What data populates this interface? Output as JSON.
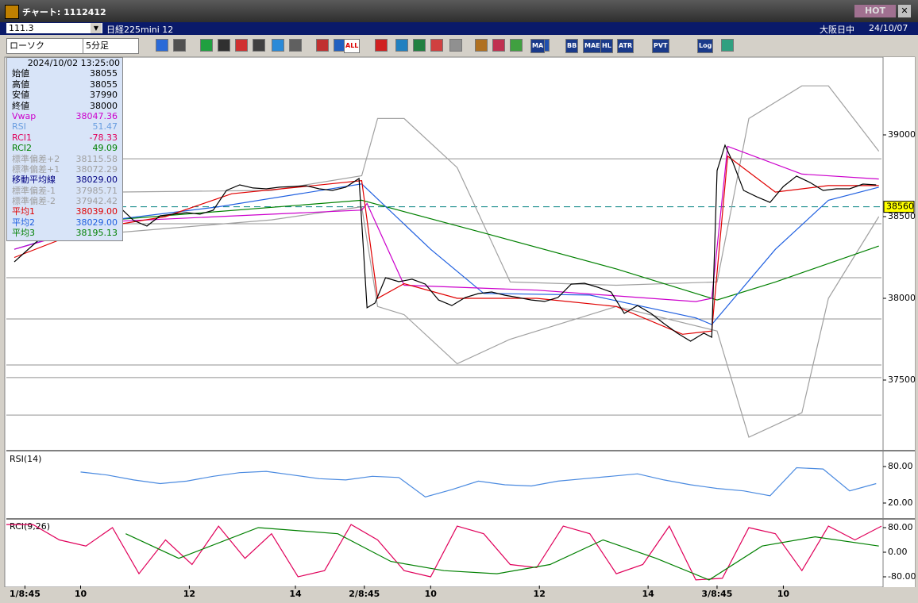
{
  "window": {
    "title": "チャート: 1112412",
    "hot": "HOT",
    "code": "111.3",
    "symbol": "日経225mini 12",
    "session": "大阪日中",
    "date": "24/10/07"
  },
  "toolbar": {
    "chart_kind": "ローソク",
    "interval": "5分足",
    "icons": [
      "ALL",
      "MA",
      "BB",
      "MAE",
      "HL",
      "ATR",
      "PVT",
      "Log"
    ]
  },
  "info_panel": {
    "datetime": "2024/10/02 13:25:00",
    "rows": [
      {
        "label": "始値",
        "value": "38055",
        "color": "#000000"
      },
      {
        "label": "高値",
        "value": "38055",
        "color": "#000000"
      },
      {
        "label": "安値",
        "value": "37990",
        "color": "#000000"
      },
      {
        "label": "終値",
        "value": "38000",
        "color": "#000000"
      },
      {
        "label": "Vwap",
        "value": "38047.36",
        "color": "#cc00cc"
      },
      {
        "label": "RSI",
        "value": "51.47",
        "color": "#6a9ee0"
      },
      {
        "label": "RCI1",
        "value": "-78.33",
        "color": "#e0005a"
      },
      {
        "label": "RCI2",
        "value": "49.09",
        "color": "#008000"
      },
      {
        "label": "標準偏差+2",
        "value": "38115.58",
        "color": "#a0a0a0"
      },
      {
        "label": "標準偏差+1",
        "value": "38072.29",
        "color": "#a0a0a0"
      },
      {
        "label": "移動平均線",
        "value": "38029.00",
        "color": "#000080"
      },
      {
        "label": "標準偏差-1",
        "value": "37985.71",
        "color": "#a0a0a0"
      },
      {
        "label": "標準偏差-2",
        "value": "37942.42",
        "color": "#a0a0a0"
      },
      {
        "label": "平均1",
        "value": "38039.00",
        "color": "#e00000"
      },
      {
        "label": "平均2",
        "value": "38029.00",
        "color": "#2060e0"
      },
      {
        "label": "平均3",
        "value": "38195.13",
        "color": "#008000"
      }
    ]
  },
  "chart_data": [
    {
      "type": "line",
      "xlim": [
        0,
        330
      ],
      "ylim": [
        37165,
        39466
      ],
      "yticks": [
        39000,
        38500,
        38000,
        37500
      ],
      "hlines": [
        38854,
        38456,
        38126,
        37874,
        37592,
        37515,
        37286
      ],
      "last_price": {
        "value": 38560,
        "color": "#008080"
      },
      "series": [
        {
          "color": "#a0a0a0",
          "x": [
            40,
            100,
            134,
            140,
            150,
            170,
            190,
            230,
            268,
            280,
            300,
            310,
            329
          ],
          "values": [
            38650,
            38660,
            38750,
            39100,
            39100,
            38800,
            38100,
            38080,
            38100,
            39100,
            39300,
            39300,
            38900
          ]
        },
        {
          "color": "#a0a0a0",
          "x": [
            40,
            100,
            134,
            140,
            150,
            170,
            190,
            230,
            268,
            280,
            300,
            310,
            329
          ],
          "values": [
            38400,
            38480,
            38560,
            37950,
            37900,
            37600,
            37750,
            37950,
            37800,
            37150,
            37300,
            38000,
            38500
          ]
        },
        {
          "color": "#008000",
          "x": [
            40,
            134,
            180,
            230,
            268,
            290,
            329
          ],
          "values": [
            38480,
            38600,
            38400,
            38180,
            37990,
            38100,
            38320
          ]
        },
        {
          "color": "#2060e0",
          "x": [
            3,
            40,
            80,
            134,
            160,
            180,
            220,
            260,
            266,
            290,
            310,
            329
          ],
          "values": [
            38300,
            38480,
            38560,
            38700,
            38300,
            38030,
            38020,
            37880,
            37840,
            38300,
            38600,
            38680
          ]
        },
        {
          "color": "#cc00cc",
          "x": [
            3,
            40,
            80,
            134,
            136,
            150,
            200,
            260,
            266,
            272,
            300,
            329
          ],
          "values": [
            38300,
            38470,
            38500,
            38540,
            38580,
            38080,
            38050,
            37980,
            38000,
            38930,
            38760,
            38730
          ]
        },
        {
          "color": "#e00000",
          "x": [
            3,
            30,
            60,
            85,
            110,
            134,
            140,
            150,
            170,
            200,
            230,
            255,
            266,
            272,
            290,
            310,
            329
          ],
          "values": [
            38250,
            38420,
            38500,
            38640,
            38680,
            38720,
            38000,
            38090,
            38000,
            38000,
            37950,
            37780,
            37800,
            38870,
            38650,
            38690,
            38690
          ]
        },
        {
          "color": "#000000",
          "x": [
            3,
            8,
            13,
            18,
            23,
            28,
            33,
            38,
            43,
            48,
            53,
            58,
            63,
            68,
            73,
            78,
            83,
            88,
            93,
            98,
            103,
            108,
            113,
            118,
            123,
            128,
            133,
            136,
            139,
            143,
            148,
            153,
            158,
            163,
            168,
            173,
            178,
            183,
            188,
            193,
            198,
            203,
            208,
            213,
            218,
            223,
            228,
            233,
            238,
            243,
            248,
            253,
            258,
            263,
            266,
            268,
            271,
            274,
            278,
            283,
            288,
            293,
            298,
            303,
            308,
            313,
            318,
            323,
            328
          ],
          "values": [
            38223,
            38296,
            38369,
            38393,
            38417,
            38466,
            38505,
            38524,
            38553,
            38476,
            38442,
            38505,
            38515,
            38524,
            38515,
            38539,
            38660,
            38694,
            38675,
            38670,
            38680,
            38684,
            38689,
            38670,
            38660,
            38680,
            38733,
            37942,
            37971,
            38126,
            38102,
            38117,
            38087,
            37990,
            37956,
            38005,
            38029,
            38039,
            38019,
            38005,
            37990,
            37981,
            38005,
            38087,
            38092,
            38068,
            38039,
            37908,
            37956,
            37908,
            37845,
            37787,
            37738,
            37787,
            37762,
            38782,
            38937,
            38830,
            38660,
            38621,
            38587,
            38684,
            38748,
            38709,
            38660,
            38670,
            38670,
            38699,
            38694
          ]
        }
      ]
    },
    {
      "type": "line",
      "title": "RSI(14)",
      "xlim": [
        0,
        330
      ],
      "ylim": [
        -3.5,
        103.5
      ],
      "yticks": [
        {
          "value": 80,
          "label": "80.00"
        },
        {
          "value": 20,
          "label": "20.00"
        }
      ],
      "series": [
        {
          "color": "#4a8ae0",
          "x": [
            28,
            38,
            48,
            58,
            68,
            78,
            88,
            98,
            108,
            118,
            128,
            138,
            148,
            158,
            168,
            178,
            188,
            198,
            208,
            218,
            228,
            238,
            248,
            258,
            268,
            278,
            288,
            298,
            308,
            318,
            328
          ],
          "values": [
            71,
            66,
            58,
            52,
            56,
            64,
            70,
            72,
            66,
            60,
            58,
            64,
            62,
            30,
            42,
            56,
            50,
            48,
            56,
            60,
            64,
            68,
            58,
            50,
            44,
            40,
            32,
            78,
            76,
            40,
            52
          ]
        }
      ]
    },
    {
      "type": "line",
      "title": "RCI(9,26)",
      "xlim": [
        0,
        330
      ],
      "ylim": [
        -108.4,
        105.8
      ],
      "yticks": [
        {
          "value": 80,
          "label": "80.00"
        },
        {
          "value": 0,
          "label": "0.00"
        },
        {
          "value": -80,
          "label": "-80.00"
        }
      ],
      "xticks": [
        {
          "value": 7,
          "label": "1/8:45"
        },
        {
          "value": 28,
          "label": "10"
        },
        {
          "value": 69,
          "label": "12"
        },
        {
          "value": 109,
          "label": "14"
        },
        {
          "value": 135,
          "label": "2/8:45"
        },
        {
          "value": 160,
          "label": "10"
        },
        {
          "value": 201,
          "label": "12"
        },
        {
          "value": 242,
          "label": "14"
        },
        {
          "value": 268,
          "label": "3/8:45"
        },
        {
          "value": 293,
          "label": "10"
        }
      ],
      "series": [
        {
          "color": "#e0005a",
          "x": [
            0,
            10,
            20,
            30,
            40,
            50,
            60,
            70,
            80,
            90,
            100,
            110,
            120,
            130,
            140,
            150,
            160,
            170,
            180,
            190,
            200,
            210,
            220,
            230,
            240,
            250,
            260,
            270,
            280,
            290,
            300,
            310,
            320,
            330
          ],
          "values": [
            90,
            90,
            40,
            20,
            80,
            -70,
            40,
            -40,
            85,
            -20,
            60,
            -80,
            -60,
            90,
            40,
            -60,
            -80,
            85,
            60,
            -40,
            -50,
            85,
            60,
            -70,
            -40,
            85,
            -90,
            -85,
            80,
            60,
            -60,
            85,
            40,
            85
          ]
        },
        {
          "color": "#008000",
          "x": [
            45,
            65,
            95,
            125,
            145,
            165,
            185,
            205,
            225,
            245,
            265,
            285,
            305,
            329
          ],
          "values": [
            60,
            -20,
            80,
            60,
            -30,
            -60,
            -70,
            -40,
            40,
            -20,
            -90,
            20,
            50,
            20
          ]
        }
      ]
    }
  ]
}
